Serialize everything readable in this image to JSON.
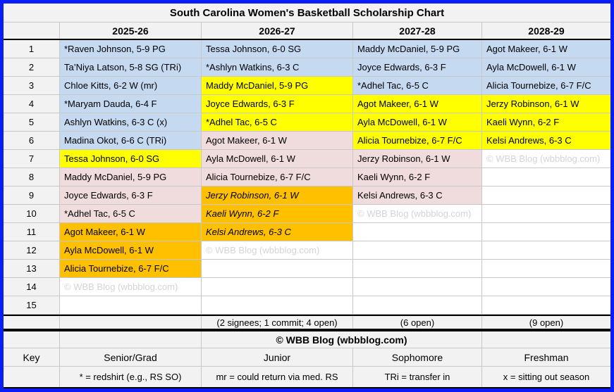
{
  "colors": {
    "frame": "#0b1df6",
    "senior": "#c5d9f1",
    "junior": "#ffff00",
    "soph": "#f0dbdd",
    "fresh": "#ffc000",
    "chrome": "#f2f2f2",
    "grid": "#c8c8c8",
    "wm": "#d4d4d4"
  },
  "chart_data": {
    "type": "table",
    "title": "South Carolina Women's Basketball Scholarship Chart",
    "columns": [
      "2025-26",
      "2026-27",
      "2027-28",
      "2028-29"
    ],
    "class_colors_legend": {
      "senior": "#c5d9f1",
      "junior": "#ffff00",
      "soph": "#f0dbdd",
      "fresh": "#ffc000"
    },
    "rows": [
      {
        "n": "1",
        "c": [
          {
            "t": "*Raven Johnson, 5-9 PG",
            "y": "senior"
          },
          {
            "t": "Tessa Johnson, 6-0 SG",
            "y": "senior"
          },
          {
            "t": "Maddy McDaniel, 5-9 PG",
            "y": "senior"
          },
          {
            "t": "Agot Makeer, 6-1 W",
            "y": "senior"
          }
        ]
      },
      {
        "n": "2",
        "c": [
          {
            "t": "Ta’Niya Latson, 5-8 SG (TRi)",
            "y": "senior"
          },
          {
            "t": "*Ashlyn Watkins, 6-3 C",
            "y": "senior"
          },
          {
            "t": "Joyce Edwards, 6-3 F",
            "y": "senior"
          },
          {
            "t": "Ayla McDowell, 6-1 W",
            "y": "senior"
          }
        ]
      },
      {
        "n": "3",
        "c": [
          {
            "t": "Chloe Kitts, 6-2 W (mr)",
            "y": "senior"
          },
          {
            "t": "Maddy McDaniel, 5-9 PG",
            "y": "junior"
          },
          {
            "t": "*Adhel Tac, 6-5 C",
            "y": "senior"
          },
          {
            "t": "Alicia Tournebize, 6-7 F/C",
            "y": "senior"
          }
        ]
      },
      {
        "n": "4",
        "c": [
          {
            "t": "*Maryam Dauda, 6-4 F",
            "y": "senior"
          },
          {
            "t": "Joyce Edwards, 6-3 F",
            "y": "junior"
          },
          {
            "t": "Agot Makeer, 6-1 W",
            "y": "junior"
          },
          {
            "t": "Jerzy Robinson, 6-1 W",
            "y": "junior"
          }
        ]
      },
      {
        "n": "5",
        "c": [
          {
            "t": "Ashlyn Watkins, 6-3 C (x)",
            "y": "senior"
          },
          {
            "t": "*Adhel Tac, 6-5 C",
            "y": "junior"
          },
          {
            "t": "Ayla McDowell, 6-1 W",
            "y": "junior"
          },
          {
            "t": "Kaeli Wynn, 6-2 F",
            "y": "junior"
          }
        ]
      },
      {
        "n": "6",
        "c": [
          {
            "t": "Madina Okot, 6-6 C (TRi)",
            "y": "senior"
          },
          {
            "t": "Agot Makeer, 6-1 W",
            "y": "soph"
          },
          {
            "t": "Alicia Tournebize, 6-7 F/C",
            "y": "junior"
          },
          {
            "t": "Kelsi Andrews, 6-3 C",
            "y": "junior"
          }
        ]
      },
      {
        "n": "7",
        "c": [
          {
            "t": "Tessa Johnson, 6-0 SG",
            "y": "junior"
          },
          {
            "t": "Ayla McDowell, 6-1 W",
            "y": "soph"
          },
          {
            "t": "Jerzy Robinson, 6-1 W",
            "y": "soph"
          },
          {
            "t": "© WBB Blog (wbbblog.com)",
            "y": "wm"
          }
        ]
      },
      {
        "n": "8",
        "c": [
          {
            "t": "Maddy McDaniel, 5-9 PG",
            "y": "soph"
          },
          {
            "t": "Alicia Tournebize, 6-7 F/C",
            "y": "soph"
          },
          {
            "t": "Kaeli Wynn, 6-2 F",
            "y": "soph"
          },
          {
            "t": "",
            "y": ""
          }
        ]
      },
      {
        "n": "9",
        "c": [
          {
            "t": "Joyce Edwards, 6-3 F",
            "y": "soph"
          },
          {
            "t": "Jerzy Robinson, 6-1 W",
            "y": "fresh it"
          },
          {
            "t": "Kelsi Andrews, 6-3 C",
            "y": "soph"
          },
          {
            "t": "",
            "y": ""
          }
        ]
      },
      {
        "n": "10",
        "c": [
          {
            "t": "*Adhel Tac, 6-5 C",
            "y": "soph"
          },
          {
            "t": "Kaeli Wynn, 6-2 F",
            "y": "fresh it"
          },
          {
            "t": "© WBB Blog (wbbblog.com)",
            "y": "wm"
          },
          {
            "t": "",
            "y": ""
          }
        ]
      },
      {
        "n": "11",
        "c": [
          {
            "t": "Agot Makeer, 6-1 W",
            "y": "fresh"
          },
          {
            "t": "Kelsi Andrews, 6-3 C",
            "y": "fresh it"
          },
          {
            "t": "",
            "y": ""
          },
          {
            "t": "",
            "y": ""
          }
        ]
      },
      {
        "n": "12",
        "c": [
          {
            "t": "Ayla McDowell, 6-1 W",
            "y": "fresh"
          },
          {
            "t": "© WBB Blog (wbbblog.com)",
            "y": "wm"
          },
          {
            "t": "",
            "y": ""
          },
          {
            "t": "",
            "y": ""
          }
        ]
      },
      {
        "n": "13",
        "c": [
          {
            "t": "Alicia Tournebize, 6-7 F/C",
            "y": "fresh"
          },
          {
            "t": "",
            "y": ""
          },
          {
            "t": "",
            "y": ""
          },
          {
            "t": "",
            "y": ""
          }
        ]
      },
      {
        "n": "14",
        "c": [
          {
            "t": "© WBB Blog (wbbblog.com)",
            "y": "wm"
          },
          {
            "t": "",
            "y": ""
          },
          {
            "t": "",
            "y": ""
          },
          {
            "t": "",
            "y": ""
          }
        ]
      },
      {
        "n": "15",
        "c": [
          {
            "t": "",
            "y": ""
          },
          {
            "t": "",
            "y": ""
          },
          {
            "t": "",
            "y": ""
          },
          {
            "t": "",
            "y": ""
          }
        ]
      }
    ],
    "summary": {
      "s1": "",
      "s2": "(2 signees; 1 commit; 4 open)",
      "s3": "(6 open)",
      "s4": "(9 open)"
    },
    "footer": "© WBB Blog (wbbblog.com)",
    "key": {
      "label": "Key",
      "items": [
        {
          "t": "Senior/Grad",
          "y": "senior"
        },
        {
          "t": "Junior",
          "y": "junior"
        },
        {
          "t": "Sophomore",
          "y": "soph"
        },
        {
          "t": "Freshman",
          "y": "fresh"
        }
      ]
    },
    "legend_notes": [
      "* = redshirt (e.g., RS SO)",
      "mr = could return via med. RS",
      "TRi = transfer in",
      "x = sitting out season"
    ]
  }
}
